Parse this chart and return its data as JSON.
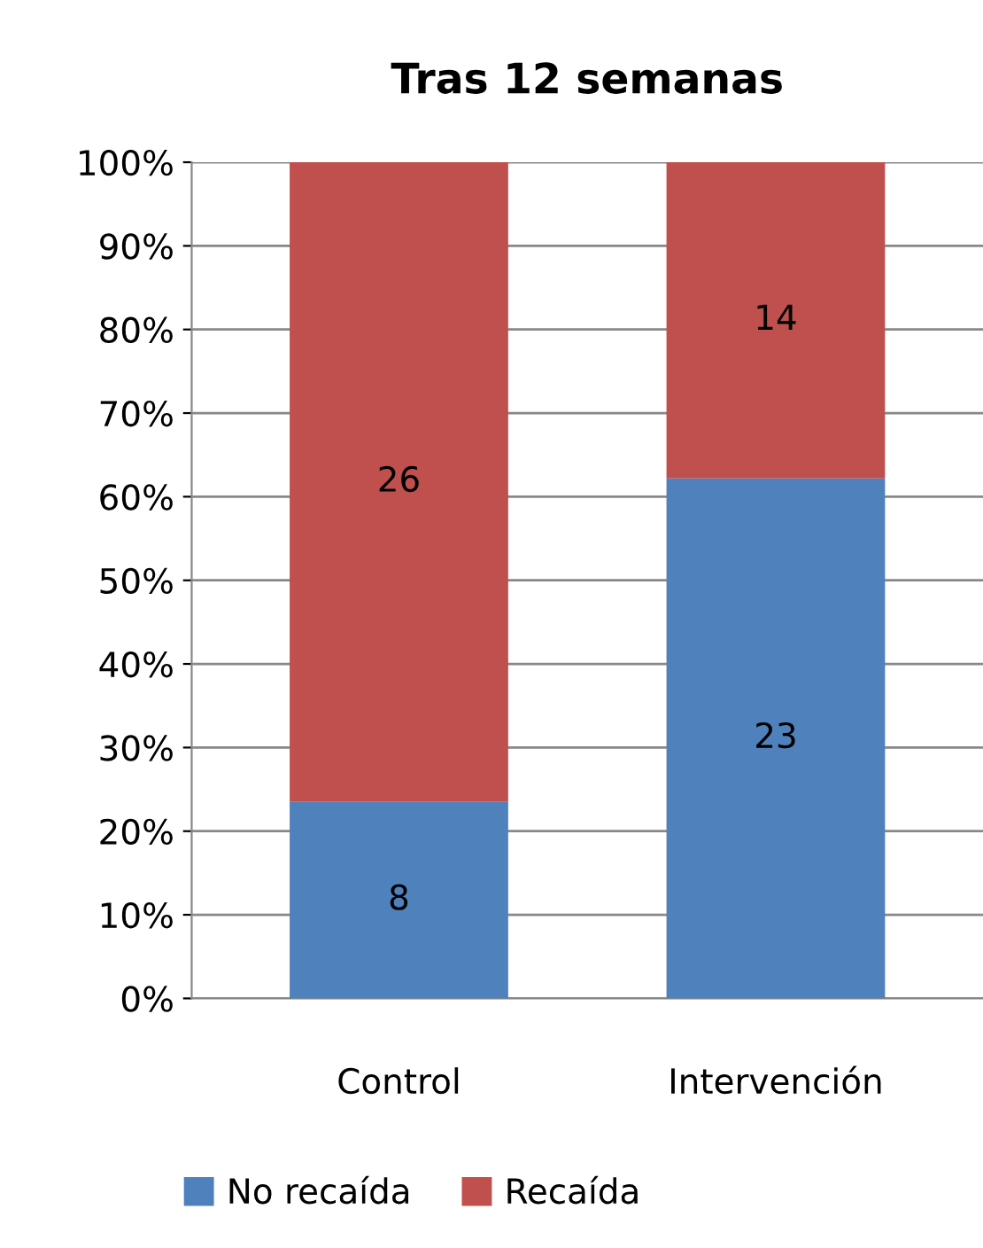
{
  "chart_data": {
    "type": "bar",
    "title": "Tras 12 semanas",
    "stacked": true,
    "categories": [
      "Control",
      "Intervención"
    ],
    "series": [
      {
        "name": "No recaída",
        "color": "#4f81bd",
        "values": [
          23.5,
          62.2
        ]
      },
      {
        "name": "Recaída",
        "color": "#c0504d",
        "values": [
          76.5,
          37.8
        ]
      }
    ],
    "annotations": [
      "8",
      "23",
      "26",
      "14"
    ],
    "ylim": [
      0,
      100
    ],
    "yticks": [
      {
        "value": 0,
        "label": "0%"
      },
      {
        "value": 10,
        "label": "10%"
      },
      {
        "value": 20,
        "label": "20%"
      },
      {
        "value": 30,
        "label": "30%"
      },
      {
        "value": 40,
        "label": "40%"
      },
      {
        "value": 50,
        "label": "50%"
      },
      {
        "value": 60,
        "label": "60%"
      },
      {
        "value": 70,
        "label": "70%"
      },
      {
        "value": 80,
        "label": "80%"
      },
      {
        "value": 90,
        "label": "90%"
      },
      {
        "value": 100,
        "label": "100%"
      }
    ],
    "grid": "y",
    "legend": "bottom"
  }
}
